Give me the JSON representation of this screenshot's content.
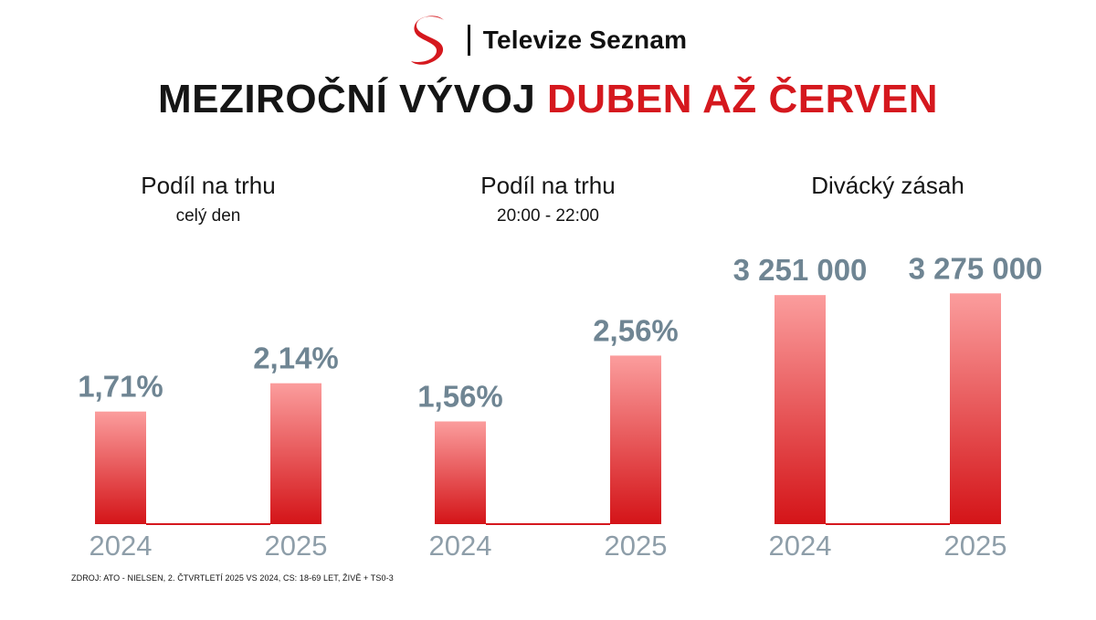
{
  "brand": {
    "name": "Televize Seznam",
    "logo_icon": "seznam-s-logo"
  },
  "title": {
    "part1": "MEZIROČNÍ VÝVOJ",
    "part2": "DUBEN AŽ ČERVEN"
  },
  "colors": {
    "accent": "#d5181e",
    "bar_top": "#fb9d9d",
    "bar_bottom": "#d41418",
    "value_label": "#6f8593",
    "tick_label": "#8e9ea9",
    "title_dark": "#151515"
  },
  "chart_data": [
    {
      "type": "bar",
      "title": "Podíl na trhu",
      "subtitle": "celý den",
      "categories": [
        "2024",
        "2025"
      ],
      "values": [
        1.71,
        2.14
      ],
      "value_labels": [
        "1,71%",
        "2,14%"
      ],
      "unit": "%",
      "ylim": [
        0,
        3.8
      ]
    },
    {
      "type": "bar",
      "title": "Podíl na trhu",
      "subtitle": "20:00 - 22:00",
      "categories": [
        "2024",
        "2025"
      ],
      "values": [
        1.56,
        2.56
      ],
      "value_labels": [
        "1,56%",
        "2,56%"
      ],
      "unit": "%",
      "ylim": [
        0,
        3.8
      ]
    },
    {
      "type": "bar",
      "title": "Divácký zásah",
      "subtitle": "",
      "categories": [
        "2024",
        "2025"
      ],
      "values": [
        3251000,
        3275000
      ],
      "value_labels": [
        "3 251 000",
        "3 275 000"
      ],
      "ylim": [
        0,
        3551000
      ]
    }
  ],
  "footer": {
    "source": "ZDROJ: ATO - NIELSEN, 2. ČTVRTLETÍ 2025 VS 2024, CS: 18-69 LET, ŽIVĚ + TS0-3"
  }
}
